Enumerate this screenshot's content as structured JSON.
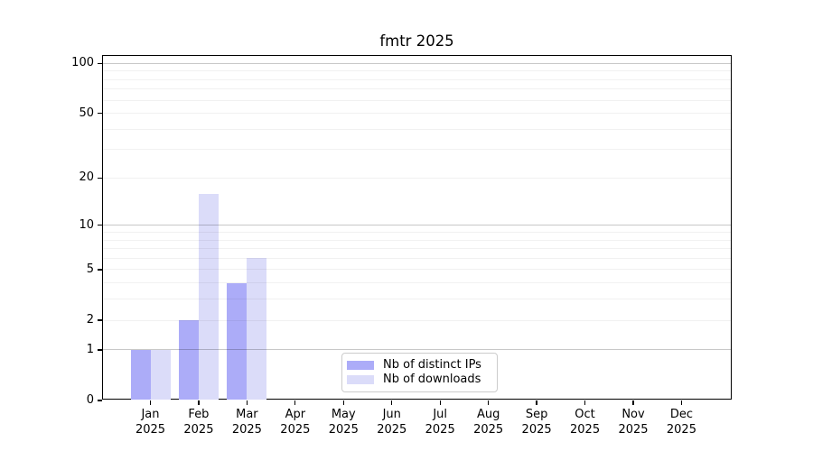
{
  "title": "fmtr 2025",
  "chart_data": {
    "type": "bar",
    "title": "fmtr 2025",
    "yscale": "log1p",
    "categories": [
      "Jan",
      "Feb",
      "Mar",
      "Apr",
      "May",
      "Jun",
      "Jul",
      "Aug",
      "Sep",
      "Oct",
      "Nov",
      "Dec"
    ],
    "xlabel_year": "2025",
    "series": [
      {
        "name": "Nb of distinct IPs",
        "color": "#acacf8",
        "values": [
          1,
          2,
          4,
          0,
          0,
          0,
          0,
          0,
          0,
          0,
          0,
          0
        ]
      },
      {
        "name": "Nb of downloads",
        "color": "#dbdcf9",
        "values": [
          1,
          16,
          6,
          0,
          0,
          0,
          0,
          0,
          0,
          0,
          0,
          0
        ]
      }
    ],
    "yticks": [
      0,
      1,
      2,
      5,
      10,
      20,
      50,
      100
    ],
    "minor_gridlines": [
      2,
      3,
      4,
      5,
      6,
      7,
      8,
      9,
      20,
      30,
      40,
      50,
      60,
      70,
      80,
      90
    ],
    "major_gridlines": [
      1,
      10,
      100
    ],
    "ylim": [
      0,
      115
    ],
    "grid_minor_color": "#efefef",
    "grid_major_color": "#c8c8c8",
    "axis_color": "#000000",
    "background_color": "#ffffff",
    "legend_position": "inside-bottom-center",
    "xlabel": "",
    "ylabel": ""
  }
}
